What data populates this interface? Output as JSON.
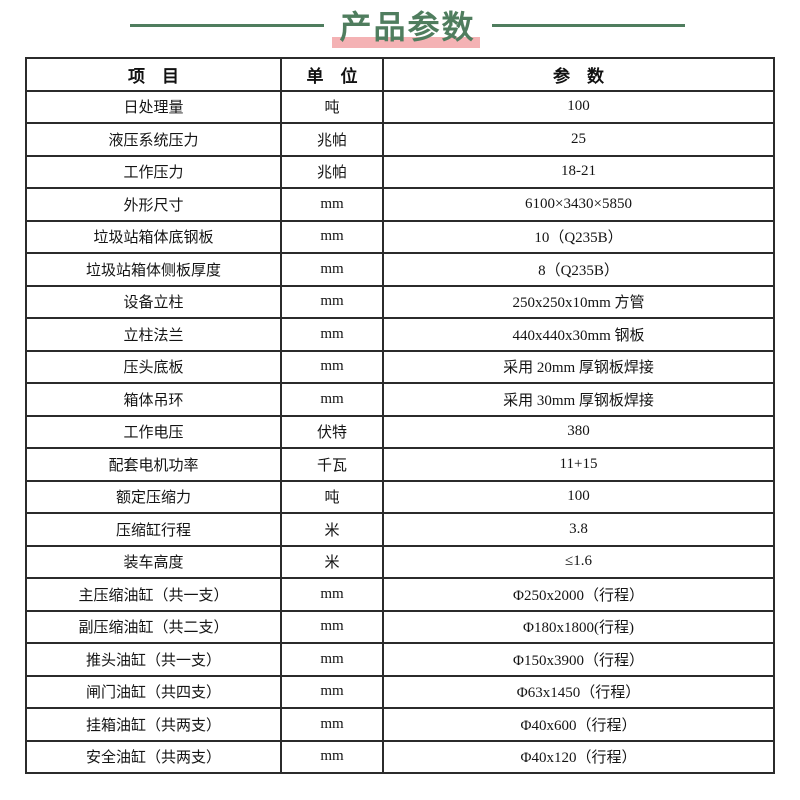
{
  "title": {
    "text": "产品参数",
    "text_color": "#4f7d5e",
    "line_color": "#4f7d5e",
    "highlight_color": "#f4b2b4"
  },
  "table": {
    "border_color": "#2b2b2b",
    "headers": [
      "项　目",
      "单　位",
      "参　数"
    ],
    "rows": [
      {
        "item": "日处理量",
        "unit": "吨",
        "value": "100"
      },
      {
        "item": "液压系统压力",
        "unit": "兆帕",
        "value": "25"
      },
      {
        "item": "工作压力",
        "unit": "兆帕",
        "value": "18-21"
      },
      {
        "item": "外形尺寸",
        "unit": "mm",
        "value": "6100×3430×5850"
      },
      {
        "item": "垃圾站箱体底钢板",
        "unit": "mm",
        "value": "10（Q235B）"
      },
      {
        "item": "垃圾站箱体侧板厚度",
        "unit": "mm",
        "value": "8（Q235B）"
      },
      {
        "item": "设备立柱",
        "unit": "mm",
        "value": "250x250x10mm 方管"
      },
      {
        "item": "立柱法兰",
        "unit": "mm",
        "value": "440x440x30mm 钢板"
      },
      {
        "item": "压头底板",
        "unit": "mm",
        "value": "采用 20mm 厚钢板焊接"
      },
      {
        "item": "箱体吊环",
        "unit": "mm",
        "value": "采用 30mm 厚钢板焊接"
      },
      {
        "item": "工作电压",
        "unit": "伏特",
        "value": "380"
      },
      {
        "item": "配套电机功率",
        "unit": "千瓦",
        "value": "11+15"
      },
      {
        "item": "额定压缩力",
        "unit": "吨",
        "value": "100"
      },
      {
        "item": "压缩缸行程",
        "unit": "米",
        "value": "3.8"
      },
      {
        "item": "装车高度",
        "unit": "米",
        "value": "≤1.6"
      },
      {
        "item": "主压缩油缸（共一支）",
        "unit": "mm",
        "value": "Φ250x2000（行程）"
      },
      {
        "item": "副压缩油缸（共二支）",
        "unit": "mm",
        "value": "Φ180x1800(行程)"
      },
      {
        "item": "推头油缸（共一支）",
        "unit": "mm",
        "value": "Φ150x3900（行程）"
      },
      {
        "item": "闸门油缸（共四支）",
        "unit": "mm",
        "value": "Φ63x1450（行程）"
      },
      {
        "item": "挂箱油缸（共两支）",
        "unit": "mm",
        "value": "Φ40x600（行程）"
      },
      {
        "item": "安全油缸（共两支）",
        "unit": "mm",
        "value": "Φ40x120（行程）"
      }
    ]
  }
}
